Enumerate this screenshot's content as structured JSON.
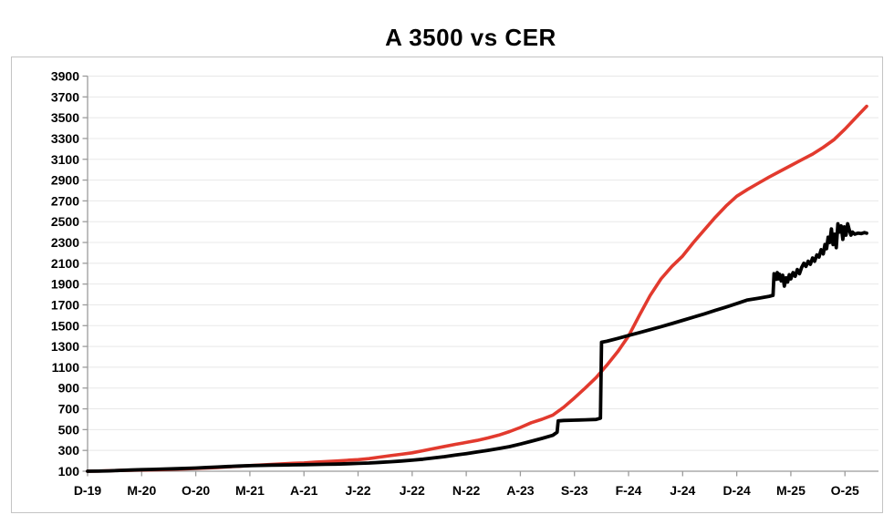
{
  "chart_data": {
    "type": "line",
    "title": "A 3500 vs CER",
    "legend": "none",
    "grid": true,
    "x_axis": {
      "tick_labels": [
        "D-19",
        "M-20",
        "O-20",
        "M-21",
        "A-21",
        "J-22",
        "J-22",
        "N-22",
        "A-23",
        "S-23",
        "F-24",
        "J-24",
        "D-24",
        "M-25",
        "O-25"
      ],
      "tick_months": [
        0,
        5,
        10,
        15,
        20,
        25,
        30,
        35,
        40,
        45,
        50,
        55,
        60,
        65,
        70
      ],
      "max_month": 73.1
    },
    "y_axis": {
      "min": 100,
      "max": 3900,
      "step": 200
    },
    "colors": {
      "grid": "#e8e8e8",
      "axis": "#9b9b9b",
      "frame": "#c4c4c4",
      "text": "#000000"
    },
    "series": [
      {
        "name": "CER",
        "color": "#e23a2e",
        "points": [
          [
            0,
            100
          ],
          [
            1,
            102
          ],
          [
            2,
            104
          ],
          [
            3,
            108
          ],
          [
            4,
            109
          ],
          [
            5,
            111
          ],
          [
            6,
            114
          ],
          [
            7,
            116
          ],
          [
            8,
            119
          ],
          [
            9,
            122
          ],
          [
            10,
            127
          ],
          [
            11,
            131
          ],
          [
            12,
            136
          ],
          [
            13,
            142
          ],
          [
            14,
            147
          ],
          [
            15,
            154
          ],
          [
            16,
            160
          ],
          [
            17,
            165
          ],
          [
            18,
            171
          ],
          [
            19,
            176
          ],
          [
            20,
            180
          ],
          [
            21,
            187
          ],
          [
            22,
            193
          ],
          [
            23,
            198
          ],
          [
            24,
            205
          ],
          [
            25,
            211
          ],
          [
            26,
            221
          ],
          [
            27,
            236
          ],
          [
            28,
            250
          ],
          [
            29,
            263
          ],
          [
            30,
            277
          ],
          [
            31,
            297
          ],
          [
            32,
            318
          ],
          [
            33,
            338
          ],
          [
            34,
            359
          ],
          [
            35,
            377
          ],
          [
            36,
            396
          ],
          [
            37,
            420
          ],
          [
            38,
            447
          ],
          [
            39,
            481
          ],
          [
            40,
            521
          ],
          [
            41,
            566
          ],
          [
            42,
            600
          ],
          [
            43,
            640
          ],
          [
            44,
            715
          ],
          [
            45,
            805
          ],
          [
            46,
            900
          ],
          [
            47,
            1000
          ],
          [
            48,
            1120
          ],
          [
            49,
            1250
          ],
          [
            50,
            1400
          ],
          [
            51,
            1600
          ],
          [
            52,
            1790
          ],
          [
            53,
            1950
          ],
          [
            54,
            2070
          ],
          [
            55,
            2170
          ],
          [
            56,
            2300
          ],
          [
            57,
            2420
          ],
          [
            58,
            2540
          ],
          [
            59,
            2650
          ],
          [
            60,
            2745
          ],
          [
            61,
            2810
          ],
          [
            62,
            2870
          ],
          [
            63,
            2930
          ],
          [
            64,
            2985
          ],
          [
            65,
            3040
          ],
          [
            66,
            3095
          ],
          [
            67,
            3150
          ],
          [
            68,
            3215
          ],
          [
            69,
            3290
          ],
          [
            70,
            3390
          ],
          [
            71,
            3500
          ],
          [
            72,
            3610
          ]
        ]
      },
      {
        "name": "A 3500",
        "color": "#000000",
        "points": [
          [
            0,
            100
          ],
          [
            1,
            100.8
          ],
          [
            2,
            103.8
          ],
          [
            3,
            107.5
          ],
          [
            4,
            111.5
          ],
          [
            5,
            114.5
          ],
          [
            6,
            117.7
          ],
          [
            7,
            120.7
          ],
          [
            8,
            123.9
          ],
          [
            9,
            127.2
          ],
          [
            10,
            130.7
          ],
          [
            11,
            135.7
          ],
          [
            12,
            140.4
          ],
          [
            13,
            145.7
          ],
          [
            14,
            149.9
          ],
          [
            15,
            153.6
          ],
          [
            16,
            156.4
          ],
          [
            17,
            158.4
          ],
          [
            18,
            159.8
          ],
          [
            19,
            161.4
          ],
          [
            20,
            163.1
          ],
          [
            21,
            164.8
          ],
          [
            22,
            166.4
          ],
          [
            23,
            168.4
          ],
          [
            24,
            171.5
          ],
          [
            25,
            175.1
          ],
          [
            26,
            179.1
          ],
          [
            27,
            185.1
          ],
          [
            28,
            191.5
          ],
          [
            29,
            198.5
          ],
          [
            30,
            206.5
          ],
          [
            31,
            215.7
          ],
          [
            32,
            227.9
          ],
          [
            33,
            240.6
          ],
          [
            34,
            254.8
          ],
          [
            35,
            269.1
          ],
          [
            36,
            285
          ],
          [
            37,
            301
          ],
          [
            38,
            318
          ],
          [
            39,
            337
          ],
          [
            40,
            361
          ],
          [
            41,
            388
          ],
          [
            42,
            416
          ],
          [
            43,
            445
          ],
          [
            43.4,
            475
          ],
          [
            43.5,
            584
          ],
          [
            44,
            588
          ],
          [
            45,
            591
          ],
          [
            46,
            594
          ],
          [
            47,
            598
          ],
          [
            47.4,
            610
          ],
          [
            47.5,
            1340
          ],
          [
            48,
            1350
          ],
          [
            49,
            1377
          ],
          [
            50,
            1405
          ],
          [
            51,
            1433
          ],
          [
            52,
            1461
          ],
          [
            53,
            1490
          ],
          [
            54,
            1520
          ],
          [
            55,
            1551
          ],
          [
            56,
            1582
          ],
          [
            57,
            1613
          ],
          [
            58,
            1646
          ],
          [
            59,
            1679
          ],
          [
            60,
            1712
          ],
          [
            61,
            1747
          ],
          [
            62,
            1764
          ],
          [
            63,
            1782
          ],
          [
            63.35,
            1792
          ],
          [
            63.45,
            2000
          ],
          [
            63.55,
            1990
          ],
          [
            63.65,
            1945
          ],
          [
            63.75,
            2010
          ],
          [
            63.85,
            1950
          ],
          [
            63.95,
            1995
          ],
          [
            64.1,
            1930
          ],
          [
            64.25,
            1985
          ],
          [
            64.4,
            1880
          ],
          [
            64.55,
            1960
          ],
          [
            64.7,
            1920
          ],
          [
            64.85,
            1990
          ],
          [
            65,
            1950
          ],
          [
            65.2,
            2010
          ],
          [
            65.4,
            1975
          ],
          [
            65.6,
            2040
          ],
          [
            65.8,
            2000
          ],
          [
            66,
            2060
          ],
          [
            66.2,
            2100
          ],
          [
            66.4,
            2070
          ],
          [
            66.6,
            2120
          ],
          [
            66.8,
            2090
          ],
          [
            67,
            2150
          ],
          [
            67.2,
            2120
          ],
          [
            67.4,
            2180
          ],
          [
            67.6,
            2160
          ],
          [
            67.8,
            2230
          ],
          [
            68,
            2190
          ],
          [
            68.15,
            2280
          ],
          [
            68.3,
            2240
          ],
          [
            68.45,
            2350
          ],
          [
            68.6,
            2300
          ],
          [
            68.75,
            2430
          ],
          [
            68.9,
            2280
          ],
          [
            69.05,
            2380
          ],
          [
            69.2,
            2250
          ],
          [
            69.35,
            2480
          ],
          [
            69.5,
            2400
          ],
          [
            69.65,
            2460
          ],
          [
            69.8,
            2330
          ],
          [
            69.95,
            2450
          ],
          [
            70.1,
            2370
          ],
          [
            70.25,
            2480
          ],
          [
            70.4,
            2420
          ],
          [
            70.55,
            2370
          ],
          [
            70.7,
            2400
          ],
          [
            70.9,
            2380
          ],
          [
            71.2,
            2390
          ],
          [
            71.5,
            2385
          ],
          [
            71.8,
            2395
          ],
          [
            72,
            2390
          ]
        ]
      }
    ]
  }
}
